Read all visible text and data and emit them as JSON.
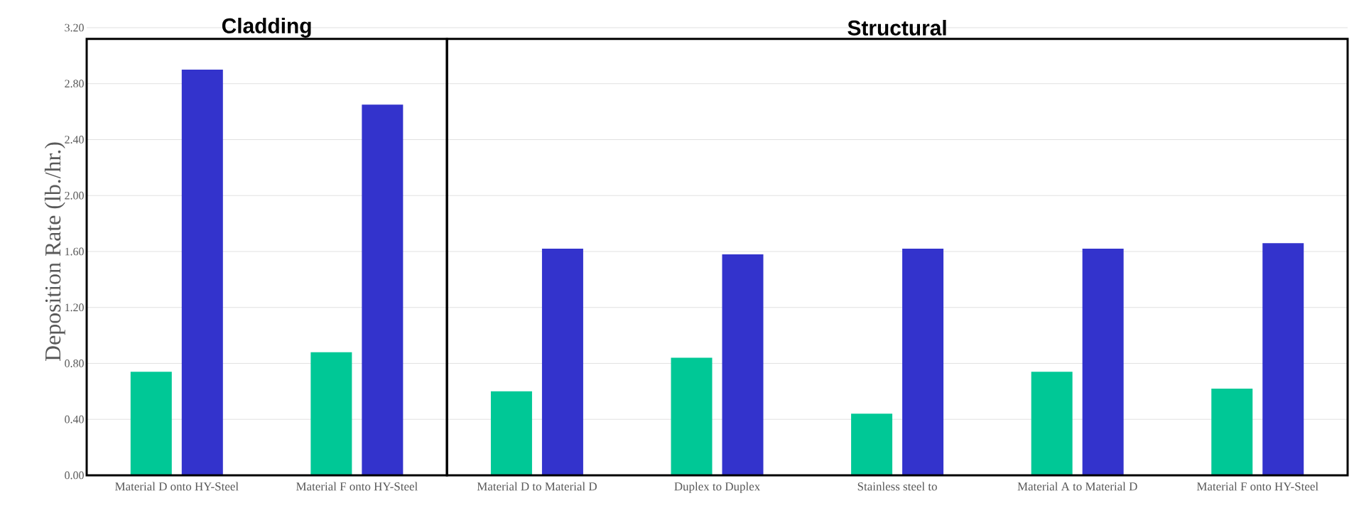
{
  "chart_data": {
    "type": "bar",
    "ylabel": "Deposition Rate (lb./hr.)",
    "categories": [
      "Material D onto HY-Steel",
      "Material F onto HY-Steel",
      "Material D to Material D",
      "Duplex to Duplex",
      "Stainless steel to",
      "Material A to Material D",
      "Material F onto HY-Steel"
    ],
    "series": [
      {
        "color": "#00c896",
        "values": [
          0.74,
          0.88,
          0.6,
          0.84,
          0.44,
          0.74,
          0.62
        ]
      },
      {
        "color": "#3333cc",
        "values": [
          2.9,
          2.65,
          1.62,
          1.58,
          1.62,
          1.62,
          1.66
        ]
      }
    ],
    "ylim": [
      0,
      3.2
    ],
    "yticks": [
      {
        "value": 0,
        "label": "0.00"
      },
      {
        "value": 0.4,
        "label": "0.40"
      },
      {
        "value": 0.8,
        "label": "0.80"
      },
      {
        "value": 1.2,
        "label": "1.20"
      },
      {
        "value": 1.6,
        "label": "1.60"
      },
      {
        "value": 2.0,
        "label": "2.00"
      },
      {
        "value": 2.4,
        "label": "2.40"
      },
      {
        "value": 2.8,
        "label": "2.80"
      },
      {
        "value": 3.2,
        "label": "3.20"
      }
    ],
    "grid": "y",
    "annotations": [
      "Cladding",
      "Structural"
    ]
  }
}
